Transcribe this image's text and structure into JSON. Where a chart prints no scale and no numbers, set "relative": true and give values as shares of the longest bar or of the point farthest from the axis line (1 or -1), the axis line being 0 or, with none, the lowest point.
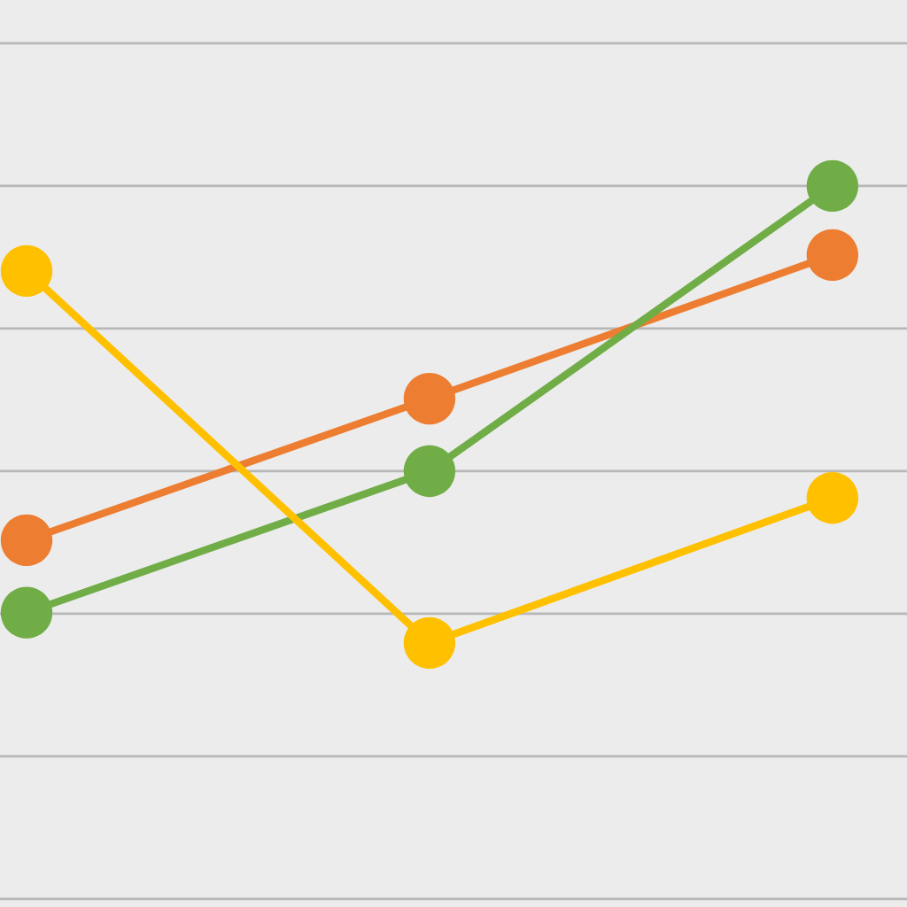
{
  "chart_data": {
    "type": "line",
    "relative": true,
    "categories": [
      null,
      null,
      null
    ],
    "grid": "y",
    "marker": "circle",
    "line_style": "solid",
    "series": [
      {
        "color": "#ed7d31",
        "values": [
          0.379,
          0.627,
          0.879
        ]
      },
      {
        "color": "#70ad47",
        "values": [
          0.252,
          0.5,
          1.0
        ]
      },
      {
        "color": "#ffc000",
        "values": [
          0.851,
          0.199,
          0.453
        ]
      }
    ]
  }
}
